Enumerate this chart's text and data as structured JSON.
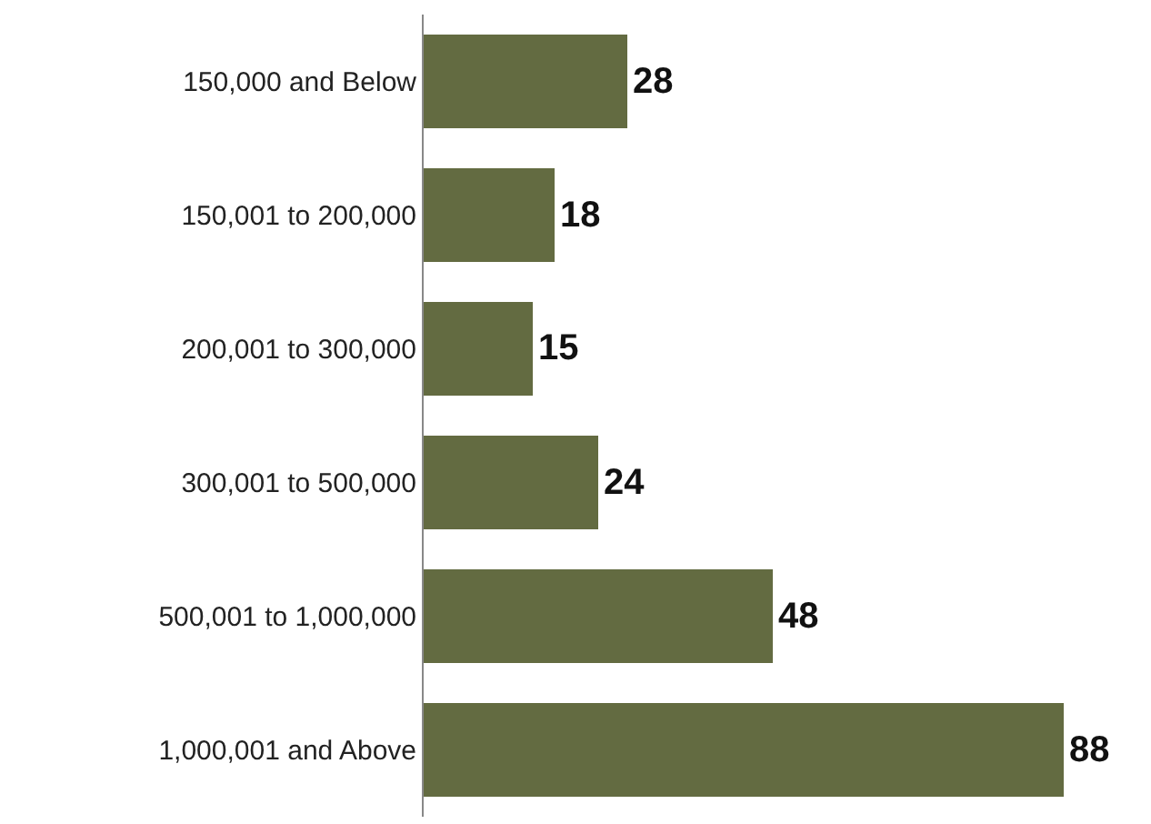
{
  "chart_data": {
    "type": "bar",
    "orientation": "horizontal",
    "categories": [
      "150,000 and Below",
      "150,001 to 200,000",
      "200,001 to 300,000",
      "300,001 to 500,000",
      "500,001 to 1,000,000",
      "1,000,001 and Above"
    ],
    "values": [
      28,
      18,
      15,
      24,
      48,
      88
    ],
    "color": "#636b41",
    "data_labels": true,
    "legend": false
  }
}
